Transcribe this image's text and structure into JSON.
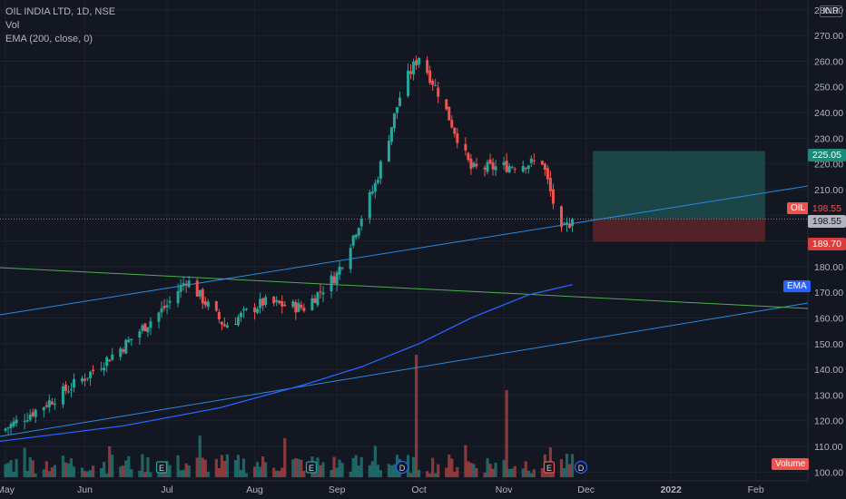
{
  "legend": {
    "symbol_line": "OIL INDIA LTD, 1D, NSE",
    "vol_line": "Vol",
    "ema_line": "EMA (200, close, 0)"
  },
  "currency": "INR",
  "axis": {
    "y_ticks": [
      "100.00",
      "110.00",
      "120.00",
      "130.00",
      "140.00",
      "150.00",
      "160.00",
      "170.00",
      "180.00",
      "190.00",
      "200.00",
      "210.00",
      "220.00",
      "230.00",
      "240.00",
      "250.00",
      "260.00",
      "270.00",
      "280.00"
    ],
    "x_ticks": [
      "May",
      "Jun",
      "Jul",
      "Aug",
      "Sep",
      "Oct",
      "Nov",
      "Dec",
      "2022",
      "Feb"
    ]
  },
  "price_tags": {
    "target": "225.05",
    "last": "198.55",
    "entry": "198.55",
    "stop": "189.70",
    "oil_label": "OIL",
    "ema_label": "EMA",
    "volume_label": "Volume"
  },
  "event_markers": [
    "E",
    "E",
    "D",
    "E",
    "D"
  ],
  "colors": {
    "background": "#131722",
    "up": "#26a69a",
    "down": "#ef5350",
    "ema": "#2962ff",
    "trend_blue": "#2a8ae0",
    "trend_green": "#4caf50",
    "target_zone": "#1d4a4a",
    "stop_zone": "#5a2329"
  },
  "chart_data": {
    "type": "candlestick",
    "title": "OIL INDIA LTD, 1D, NSE",
    "ylim": [
      98,
      282
    ],
    "x_range": [
      "2021-05-01",
      "2022-02-20"
    ],
    "series": [
      {
        "name": "OIL INDIA LTD",
        "type": "close",
        "x": [
          "2021-05-03",
          "2021-05-17",
          "2021-06-01",
          "2021-06-15",
          "2021-07-01",
          "2021-07-08",
          "2021-07-22",
          "2021-08-05",
          "2021-08-20",
          "2021-09-01",
          "2021-09-15",
          "2021-09-25",
          "2021-10-01",
          "2021-10-08",
          "2021-10-20",
          "2021-11-01",
          "2021-11-15",
          "2021-11-22",
          "2021-11-26"
        ],
        "y": [
          117,
          126,
          137,
          149,
          165,
          175,
          157,
          166,
          164,
          177,
          212,
          250,
          262,
          248,
          218,
          219,
          221,
          193,
          198.55
        ]
      },
      {
        "name": "EMA (200, close, 0)",
        "x": [
          "2021-05-01",
          "2021-06-15",
          "2021-07-20",
          "2021-08-20",
          "2021-09-10",
          "2021-10-01",
          "2021-10-20",
          "2021-11-10",
          "2021-11-26"
        ],
        "y": [
          112,
          118,
          125,
          134,
          141,
          150,
          160,
          169,
          173
        ]
      }
    ],
    "annotations": {
      "position_target": 225.05,
      "position_entry": 198.55,
      "position_stop": 189.7
    }
  }
}
